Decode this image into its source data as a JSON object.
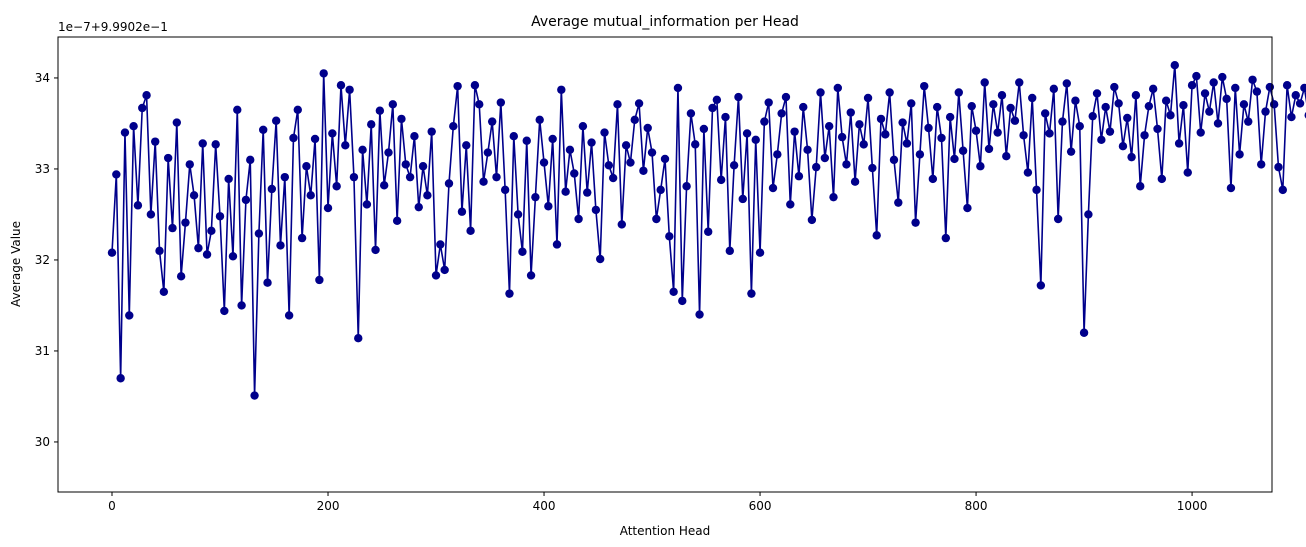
{
  "chart_data": {
    "type": "line",
    "title": "Average mutual_information per Head",
    "xlabel": "Attention Head",
    "ylabel": "Average Value",
    "offset_text": "1e−7+9.9902e−1",
    "xlim": [
      -50,
      1074
    ],
    "ylim": [
      29.45,
      34.45
    ],
    "x_ticks": [
      0,
      200,
      400,
      600,
      800,
      1000
    ],
    "y_ticks": [
      30,
      31,
      32,
      33,
      34
    ],
    "x_tick_labels": [
      "0",
      "200",
      "400",
      "600",
      "800",
      "1000"
    ],
    "y_tick_labels": [
      "30",
      "31",
      "32",
      "33",
      "34"
    ],
    "grid": false,
    "legend": "none",
    "color": "#00008b",
    "marker": "circle",
    "series": [
      {
        "name": "",
        "x_start": 0,
        "x_step": 4,
        "values": [
          32.08,
          32.94,
          30.7,
          33.4,
          31.39,
          33.47,
          32.6,
          33.67,
          33.81,
          32.5,
          33.3,
          32.1,
          31.65,
          33.12,
          32.35,
          33.51,
          31.82,
          32.41,
          33.05,
          32.71,
          32.13,
          33.28,
          32.06,
          32.32,
          33.27,
          32.48,
          31.44,
          32.89,
          32.04,
          33.65,
          31.5,
          32.66,
          33.1,
          30.51,
          32.29,
          33.43,
          31.75,
          32.78,
          33.53,
          32.16,
          32.91,
          31.39,
          33.34,
          33.65,
          32.24,
          33.03,
          32.71,
          33.33,
          31.78,
          34.05,
          32.57,
          33.39,
          32.81,
          33.92,
          33.26,
          33.87,
          32.91,
          31.14,
          33.21,
          32.61,
          33.49,
          32.11,
          33.64,
          32.82,
          33.18,
          33.71,
          32.43,
          33.55,
          33.05,
          32.91,
          33.36,
          32.58,
          33.03,
          32.71,
          33.41,
          31.83,
          32.17,
          31.89,
          32.84,
          33.47,
          33.91,
          32.53,
          33.26,
          32.32,
          33.92,
          33.71,
          32.86,
          33.18,
          33.52,
          32.91,
          33.73,
          32.77,
          31.63,
          33.36,
          32.5,
          32.09,
          33.31,
          31.83,
          32.69,
          33.54,
          33.07,
          32.59,
          33.33,
          32.17,
          33.87,
          32.75,
          33.21,
          32.95,
          32.45,
          33.47,
          32.74,
          33.29,
          32.55,
          32.01,
          33.4,
          33.04,
          32.9,
          33.71,
          32.39,
          33.26,
          33.07,
          33.54,
          33.72,
          32.98,
          33.45,
          33.18,
          32.45,
          32.77,
          33.11,
          32.26,
          31.65,
          33.89,
          31.55,
          32.81,
          33.61,
          33.27,
          31.4,
          33.44,
          32.31,
          33.67,
          33.76,
          32.88,
          33.57,
          32.1,
          33.04,
          33.79,
          32.67,
          33.39,
          31.63,
          33.32,
          32.08,
          33.52,
          33.73,
          32.79,
          33.16,
          33.61,
          33.79,
          32.61,
          33.41,
          32.92,
          33.68,
          33.21,
          32.44,
          33.02,
          33.84,
          33.12,
          33.47,
          32.69,
          33.89,
          33.35,
          33.05,
          33.62,
          32.86,
          33.49,
          33.27,
          33.78,
          33.01,
          32.27,
          33.55,
          33.38,
          33.84,
          33.1,
          32.63,
          33.51,
          33.28,
          33.72,
          32.41,
          33.16,
          33.91,
          33.45,
          32.89,
          33.68,
          33.34,
          32.24,
          33.57,
          33.11,
          33.84,
          33.2,
          32.57,
          33.69,
          33.42,
          33.03,
          33.95,
          33.22,
          33.71,
          33.4,
          33.81,
          33.14,
          33.67,
          33.53,
          33.95,
          33.37,
          32.96,
          33.78,
          32.77,
          31.72,
          33.61,
          33.39,
          33.88,
          32.45,
          33.52,
          33.94,
          33.19,
          33.75,
          33.47,
          31.2,
          32.5,
          33.58,
          33.83,
          33.32,
          33.68,
          33.41,
          33.9,
          33.72,
          33.25,
          33.56,
          33.13,
          33.81,
          32.81,
          33.37,
          33.69,
          33.88,
          33.44,
          32.89,
          33.75,
          33.59,
          34.14,
          33.28,
          33.7,
          32.96,
          33.92,
          34.02,
          33.4,
          33.83,
          33.63,
          33.95,
          33.5,
          34.01,
          33.77,
          32.79,
          33.89,
          33.16,
          33.71,
          33.52,
          33.98,
          33.85,
          33.05,
          33.63,
          33.9,
          33.71,
          33.02,
          32.77,
          33.92,
          33.57,
          33.81,
          33.72,
          33.89,
          33.59,
          33.65,
          33.94,
          33.77,
          33.86,
          33.61,
          33.73,
          33.82,
          33.68,
          34.0,
          33.82,
          33.71,
          33.93,
          33.88,
          34.02,
          33.77,
          33.92,
          34.06,
          33.66,
          33.97,
          33.79,
          33.64,
          33.33,
          33.62,
          34.07,
          33.52,
          33.24,
          33.82,
          33.47,
          33.95,
          33.26,
          33.68,
          34.04,
          33.44,
          33.87,
          33.15,
          32.86,
          33.71,
          32.79,
          33.95,
          34.18,
          33.51,
          32.57,
          33.89,
          33.02,
          33.74,
          33.28,
          34.01,
          33.83,
          33.42,
          34.06,
          33.59,
          32.45,
          33.77,
          33.12,
          33.94,
          33.57,
          33.21,
          32.84,
          33.71,
          34.05,
          33.39,
          33.86,
          33.55,
          33.97,
          33.67,
          33.89,
          33.2,
          34.02,
          33.47,
          33.78,
          33.62,
          31.96,
          33.37,
          32.67,
          33.98,
          34.13,
          33.78,
          33.52,
          33.86,
          32.95,
          33.59,
          32.12,
          33.81,
          33.38,
          33.92,
          33.09,
          32.71,
          33.73,
          33.5,
          32.06,
          33.96,
          33.25,
          33.82,
          32.67,
          33.42,
          33.74,
          31.93,
          33.62,
          32.91,
          33.88,
          33.31,
          33.95,
          33.45,
          33.78,
          33.21,
          33.97,
          33.56,
          32.61,
          33.81,
          33.36,
          33.63,
          33.84,
          33.41,
          33.97,
          33.7,
          32.87,
          33.58,
          32.72,
          34.0,
          33.73,
          32.71,
          33.94,
          33.53,
          32.97,
          33.78,
          32.8,
          33.44,
          33.84,
          32.91,
          34.01,
          34.01,
          33.66,
          33.91,
          33.56,
          32.74,
          33.82,
          33.22,
          33.68,
          33.47,
          32.83,
          33.72,
          33.25,
          33.93,
          33.08,
          33.58,
          32.28,
          33.79,
          33.35,
          33.97,
          32.2,
          33.61,
          33.42,
          34.02,
          32.51,
          33.76,
          32.62,
          33.45,
          33.88,
          32.86,
          34.1,
          33.51,
          32.81,
          33.73,
          33.28,
          34.04,
          32.69,
          33.63,
          33.91,
          32.95,
          33.47,
          33.7,
          32.88,
          33.83,
          33.32,
          33.96,
          32.61,
          33.67,
          33.15,
          32.73,
          33.89,
          32.11,
          33.44,
          33.81,
          33.62,
          32.99,
          33.94,
          33.54,
          33.02,
          33.34,
          34.11,
          33.72,
          32.01,
          33.51,
          33.94,
          32.91,
          33.62,
          33.23,
          31.13,
          33.52,
          33.87,
          32.69,
          33.43,
          34.09,
          32.48,
          33.65,
          32.91,
          33.38,
          32.52,
          32.03,
          33.77,
          32.78,
          33.5,
          31.43,
          33.24,
          31.47,
          33.93,
          32.79,
          32.42,
          33.68,
          34.19,
          33.27,
          32.69,
          32.83,
          33.91,
          32.33,
          33.58,
          32.78,
          32.74,
          33.06,
          33.47,
          33.74,
          33.22,
          32.55,
          33.92,
          32.44,
          33.62,
          32.01,
          33.44,
          32.66,
          32.19,
          33.29,
          33.77,
          32.47,
          33.82,
          32.89,
          34.0,
          33.58,
          33.18,
          32.71,
          33.94,
          33.37,
          32.07,
          33.86,
          33.43,
          31.72,
          33.03,
          33.74,
          32.05,
          33.29,
          33.72,
          31.82,
          33.59,
          32.51,
          31.81,
          33.48,
          32.59,
          33.73,
          31.79,
          33.31,
          29.62,
          32.71,
          32.6,
          33.88,
          33.54,
          33.26,
          31.92,
          32.78,
          33.63,
          32.36,
          33.47,
          32.98,
          33.31,
          32.72,
          33.85,
          33.05,
          32.59,
          33.69,
          32.81,
          33.22,
          32.41,
          33.53,
          32.03,
          33.39,
          32.7,
          33.79,
          32.96,
          32.31,
          33.64,
          32.87,
          31.99,
          33.31,
          32.54,
          33.72,
          32.65,
          33.42,
          32.13,
          33.59,
          32.84,
          32.01,
          33.53,
          31.59,
          33.92,
          32.83,
          32.35,
          33.81,
          32.21,
          33.36,
          33.58,
          32.04,
          33.81,
          32.52,
          33.27,
          33.88,
          32.57,
          33.05,
          32.81,
          33.47,
          32.31,
          33.68,
          33.39,
          32.48,
          33.94,
          31.81,
          34.02,
          33.57,
          32.11,
          33.28,
          33.72,
          32.63,
          32.39,
          33.15,
          33.56,
          31.56,
          32.22,
          33.81,
          33.18,
          33.47,
          32.75,
          32.07,
          33.82,
          33.29,
          32.44,
          33.58,
          32.86,
          33.64,
          31.47,
          32.56,
          33.36,
          33.84,
          31.91,
          32.76,
          33.17,
          32.32,
          33.71,
          32.91,
          32.22,
          33.41,
          32.67,
          33.09,
          32.37,
          34.01,
          33.46,
          32.74,
          32.17,
          33.63,
          31.15,
          33.34,
          32.01
        ]
      }
    ]
  }
}
